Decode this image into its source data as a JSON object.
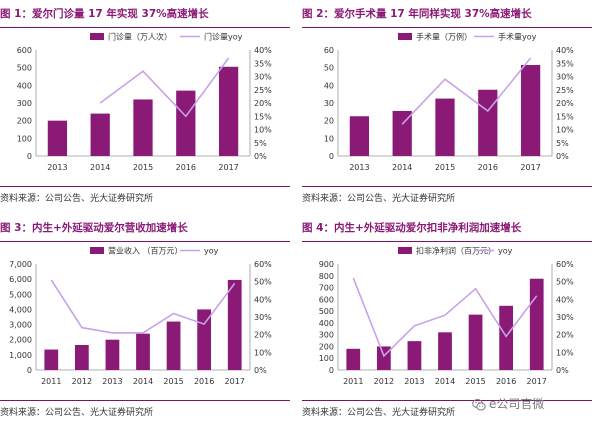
{
  "colors": {
    "bar": "#8a1a76",
    "line": "#c8a2e8",
    "title": "#8a1a76"
  },
  "watermark": {
    "text": "e公司官微",
    "icon": "wechat-icon"
  },
  "chart_data": [
    {
      "type": "bar",
      "title": "图 1：爱尔门诊量 17 年实现 37%高速增长",
      "source": "资料来源：公司公告、光大证券研究所",
      "categories": [
        "2013",
        "2014",
        "2015",
        "2016",
        "2017"
      ],
      "series": [
        {
          "name": "门诊量（万人次）",
          "axis": "left",
          "values": [
            200,
            240,
            320,
            370,
            505
          ]
        },
        {
          "name": "门诊量yoy",
          "axis": "right",
          "type": "line",
          "values": [
            null,
            0.2,
            0.32,
            0.15,
            0.37
          ]
        }
      ],
      "yticks_left": [
        "0",
        "100",
        "200",
        "300",
        "400",
        "500",
        "600"
      ],
      "ylim_left": [
        0,
        600
      ],
      "yticks_right": [
        "0%",
        "5%",
        "10%",
        "15%",
        "20%",
        "25%",
        "30%",
        "35%",
        "40%"
      ],
      "ylim_right": [
        0,
        0.4
      ],
      "legend": "top"
    },
    {
      "type": "bar",
      "title": "图 2：爱尔手术量 17 年同样实现 37%高速增长",
      "source": "资料来源：公司公告、光大证券研究所",
      "categories": [
        "2013",
        "2014",
        "2015",
        "2016",
        "2017"
      ],
      "series": [
        {
          "name": "手术量（万例）",
          "axis": "left",
          "values": [
            22.5,
            25.5,
            32.5,
            37.5,
            51.5
          ]
        },
        {
          "name": "手术量yoy",
          "axis": "right",
          "type": "line",
          "values": [
            null,
            0.12,
            0.29,
            0.17,
            0.37
          ]
        }
      ],
      "yticks_left": [
        "0",
        "10",
        "20",
        "30",
        "40",
        "50",
        "60"
      ],
      "ylim_left": [
        0,
        60
      ],
      "yticks_right": [
        "0%",
        "5%",
        "10%",
        "15%",
        "20%",
        "25%",
        "30%",
        "35%",
        "40%"
      ],
      "ylim_right": [
        0,
        0.4
      ],
      "legend": "top"
    },
    {
      "type": "bar",
      "title": "图 3：内生+外延驱动爱尔营收加速增长",
      "source": "资料来源：公司公告、光大证券研究所",
      "categories": [
        "2011",
        "2012",
        "2013",
        "2014",
        "2015",
        "2016",
        "2017"
      ],
      "series": [
        {
          "name": "营业收入 （百万元）",
          "axis": "left",
          "values": [
            1350,
            1650,
            2000,
            2400,
            3200,
            4000,
            5950
          ]
        },
        {
          "name": "yoy",
          "axis": "right",
          "type": "line",
          "values": [
            0.51,
            0.24,
            0.21,
            0.21,
            0.32,
            0.26,
            0.49
          ]
        }
      ],
      "yticks_left": [
        "0",
        "1,000",
        "2,000",
        "3,000",
        "4,000",
        "5,000",
        "6,000",
        "7,000"
      ],
      "ylim_left": [
        0,
        7000
      ],
      "yticks_right": [
        "0%",
        "10%",
        "20%",
        "30%",
        "40%",
        "50%",
        "60%"
      ],
      "ylim_right": [
        0,
        0.6
      ],
      "legend": "top"
    },
    {
      "type": "bar",
      "title": "图 4：内生+外延驱动爱尔扣非净利润加速增长",
      "source": "资料来源：公司公告、光大证券研究所",
      "categories": [
        "2011",
        "2012",
        "2013",
        "2014",
        "2015",
        "2016",
        "2017"
      ],
      "series": [
        {
          "name": "扣非净利润（百万元）",
          "axis": "left",
          "values": [
            180,
            200,
            245,
            320,
            470,
            545,
            775
          ]
        },
        {
          "name": "yoy",
          "axis": "right",
          "type": "line",
          "values": [
            0.52,
            0.08,
            0.25,
            0.31,
            0.46,
            0.19,
            0.42
          ]
        }
      ],
      "yticks_left": [
        "0",
        "100",
        "200",
        "300",
        "400",
        "500",
        "600",
        "700",
        "800",
        "900"
      ],
      "ylim_left": [
        0,
        900
      ],
      "yticks_right": [
        "0%",
        "10%",
        "20%",
        "30%",
        "40%",
        "50%",
        "60%"
      ],
      "ylim_right": [
        0,
        0.6
      ],
      "legend": "top"
    }
  ]
}
